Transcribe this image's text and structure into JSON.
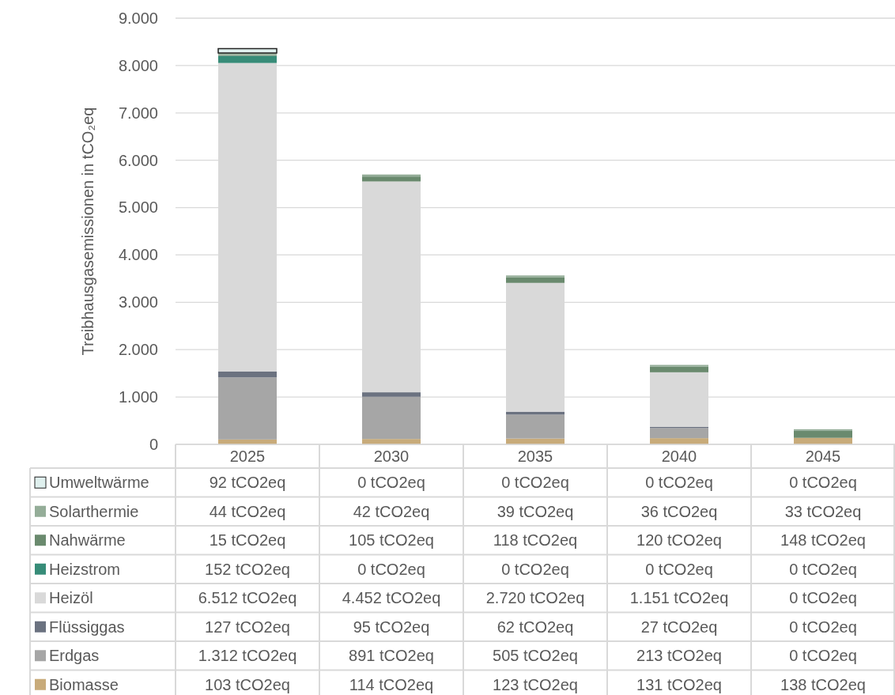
{
  "chart_data": {
    "type": "bar",
    "stacked": true,
    "ylabel": "Treibhausgasemissionen in tCO₂eq",
    "categories": [
      "2025",
      "2030",
      "2035",
      "2040",
      "2045"
    ],
    "ylim": [
      0,
      9000
    ],
    "yticks": [
      0,
      {
        "value": 1000,
        "label": "1.000"
      },
      {
        "value": 2000,
        "label": "2.000"
      },
      {
        "value": 3000,
        "label": "3.000"
      },
      {
        "value": 4000,
        "label": "4.000"
      },
      {
        "value": 5000,
        "label": "5.000"
      },
      {
        "value": 6000,
        "label": "6.000"
      },
      {
        "value": 7000,
        "label": "7.000"
      },
      {
        "value": 8000,
        "label": "8.000"
      },
      {
        "value": 9000,
        "label": "9.000"
      }
    ],
    "grid": "y",
    "legend": "bottom",
    "series": [
      {
        "name": "Biomasse",
        "color": "#c8ab7a",
        "values": [
          103,
          114,
          123,
          131,
          138
        ],
        "value_labels": [
          "103 tCO2eq",
          "114 tCO2eq",
          "123 tCO2eq",
          "131 tCO2eq",
          "138 tCO2eq"
        ]
      },
      {
        "name": "Erdgas",
        "color": "#a6a6a6",
        "values": [
          1312,
          891,
          505,
          213,
          0
        ],
        "value_labels": [
          "1.312 tCO2eq",
          "891 tCO2eq",
          "505 tCO2eq",
          "213 tCO2eq",
          "0 tCO2eq"
        ]
      },
      {
        "name": "Flüssiggas",
        "color": "#6b7280",
        "values": [
          127,
          95,
          62,
          27,
          0
        ],
        "value_labels": [
          "127 tCO2eq",
          "95 tCO2eq",
          "62 tCO2eq",
          "27 tCO2eq",
          "0 tCO2eq"
        ]
      },
      {
        "name": "Heizöl",
        "color": "#d9d9d9",
        "values": [
          6512,
          4452,
          2720,
          1151,
          0
        ],
        "value_labels": [
          "6.512 tCO2eq",
          "4.452 tCO2eq",
          "2.720 tCO2eq",
          "1.151 tCO2eq",
          "0 tCO2eq"
        ]
      },
      {
        "name": "Heizstrom",
        "color": "#378c78",
        "values": [
          152,
          0,
          0,
          0,
          0
        ],
        "value_labels": [
          "152 tCO2eq",
          "0 tCO2eq",
          "0 tCO2eq",
          "0 tCO2eq",
          "0 tCO2eq"
        ]
      },
      {
        "name": "Nahwärme",
        "color": "#6a8a6e",
        "values": [
          15,
          105,
          118,
          120,
          148
        ],
        "value_labels": [
          "15 tCO2eq",
          "105 tCO2eq",
          "118 tCO2eq",
          "120 tCO2eq",
          "148 tCO2eq"
        ]
      },
      {
        "name": "Solarthermie",
        "color": "#94ad98",
        "values": [
          44,
          42,
          39,
          36,
          33
        ],
        "value_labels": [
          "44 tCO2eq",
          "42 tCO2eq",
          "39 tCO2eq",
          "36 tCO2eq",
          "33 tCO2eq"
        ]
      },
      {
        "name": "Umweltwärme",
        "color": "#dff0ee",
        "values": [
          92,
          0,
          0,
          0,
          0
        ],
        "value_labels": [
          "92 tCO2eq",
          "0 tCO2eq",
          "0 tCO2eq",
          "0 tCO2eq",
          "0 tCO2eq"
        ]
      }
    ]
  }
}
